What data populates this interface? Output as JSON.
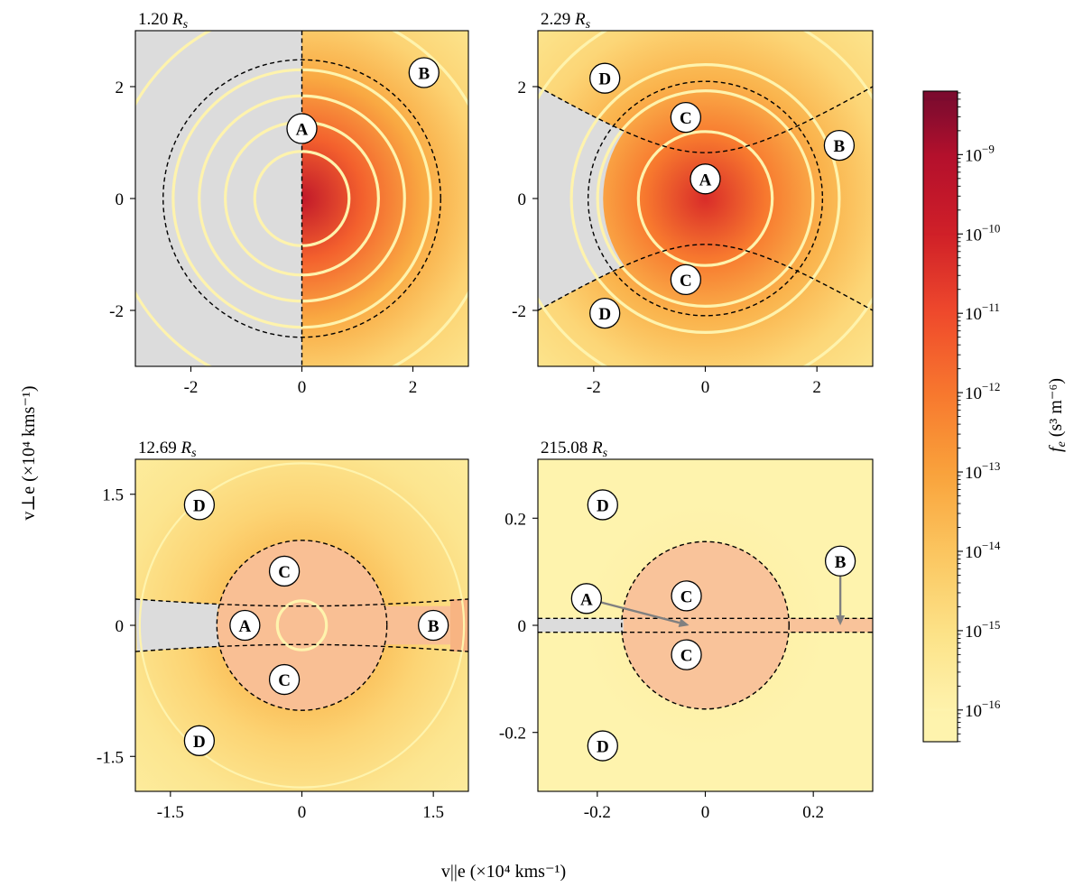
{
  "figure": {
    "shared_ylabel": "v⊥e (×10⁴ kms⁻¹)",
    "shared_xlabel": "v||e (×10⁴ kms⁻¹)"
  },
  "chart_data": [
    {
      "type": "heatmap",
      "title": "1.20 Rs",
      "title_value": "1.20",
      "title_unit": "R",
      "title_sub": "s",
      "xlim": [
        -3,
        3
      ],
      "ylim": [
        -3,
        3
      ],
      "xticks": [
        -2,
        0,
        2
      ],
      "yticks": [
        -2,
        0,
        2
      ],
      "xtick_labels": [
        "-2",
        "0",
        "2"
      ],
      "ytick_labels": [
        "-2",
        "0",
        "2"
      ],
      "core_log_fe": -9.5,
      "contours": [
        {
          "radius": 0.85,
          "level": "10⁻¹⁰"
        },
        {
          "radius": 1.38,
          "level": "10⁻¹¹"
        },
        {
          "radius": 1.85,
          "level": "10⁻¹²"
        },
        {
          "radius": 2.32,
          "level": "10⁻¹³"
        },
        {
          "radius": 3.45,
          "level": "10⁻¹⁴"
        }
      ],
      "boundaries": {
        "circle_radius": 2.5,
        "vertical_line": true,
        "gray_region": "left"
      },
      "labels": [
        {
          "text": "A",
          "v_par": 0.0,
          "v_perp": 1.25
        },
        {
          "text": "B",
          "v_par": 2.2,
          "v_perp": 2.25
        }
      ]
    },
    {
      "type": "heatmap",
      "title": "2.29 Rs",
      "title_value": "2.29",
      "title_unit": "R",
      "title_sub": "s",
      "xlim": [
        -3,
        3
      ],
      "ylim": [
        -3,
        3
      ],
      "xticks": [
        -2,
        0,
        2
      ],
      "yticks": [
        -2,
        0,
        2
      ],
      "xtick_labels": [
        "-2",
        "0",
        "2"
      ],
      "ytick_labels": [
        "-2",
        "0",
        "2"
      ],
      "core_log_fe": -10.3,
      "contours": [
        {
          "radius": 1.2,
          "level": "10⁻¹¹"
        },
        {
          "radius": 1.93,
          "level": "10⁻¹²"
        },
        {
          "radius": 2.4,
          "level": "10⁻¹³"
        },
        {
          "radius": 3.5,
          "level": "10⁻¹⁴"
        }
      ],
      "boundaries": {
        "circle_radius": 2.1,
        "hyperbola_vertex": 0.82,
        "hyperbola_edge": 2.0,
        "gray_region": "left"
      },
      "labels": [
        {
          "text": "A",
          "v_par": 0.0,
          "v_perp": 0.35
        },
        {
          "text": "B",
          "v_par": 2.4,
          "v_perp": 0.95
        },
        {
          "text": "C",
          "v_par": -0.35,
          "v_perp": 1.45
        },
        {
          "text": "C",
          "v_par": -0.35,
          "v_perp": -1.45
        },
        {
          "text": "D",
          "v_par": -1.8,
          "v_perp": 2.15
        },
        {
          "text": "D",
          "v_par": -1.8,
          "v_perp": -2.05
        }
      ]
    },
    {
      "type": "heatmap",
      "title": "12.69 Rs",
      "title_value": "12.69",
      "title_unit": "R",
      "title_sub": "s",
      "xlim": [
        -1.9,
        1.9
      ],
      "ylim": [
        -1.9,
        1.9
      ],
      "xticks": [
        -1.5,
        0,
        1.5
      ],
      "yticks": [
        -1.5,
        0,
        1.5
      ],
      "xtick_labels": [
        "-1.5",
        "0",
        "1.5"
      ],
      "ytick_labels": [
        "-1.5",
        "0",
        "1.5"
      ],
      "core_log_fe": -12.6,
      "contours": [
        {
          "radius": 0.28,
          "level": "10⁻¹²"
        },
        {
          "radius": 1.85,
          "level": "10⁻¹⁵"
        }
      ],
      "boundaries": {
        "circle_radius": 0.97,
        "hyperbola_vertex": 0.22,
        "hyperbola_edge": 0.3,
        "gray_region": "left"
      },
      "labels": [
        {
          "text": "A",
          "v_par": -0.65,
          "v_perp": 0.0
        },
        {
          "text": "B",
          "v_par": 1.5,
          "v_perp": 0.0
        },
        {
          "text": "C",
          "v_par": -0.2,
          "v_perp": 0.62
        },
        {
          "text": "C",
          "v_par": -0.2,
          "v_perp": -0.62
        },
        {
          "text": "D",
          "v_par": -1.17,
          "v_perp": 1.38
        },
        {
          "text": "D",
          "v_par": -1.17,
          "v_perp": -1.32
        }
      ]
    },
    {
      "type": "heatmap",
      "title": "215.08 Rs",
      "title_value": "215.08",
      "title_unit": "R",
      "title_sub": "s",
      "xlim": [
        -0.31,
        0.31
      ],
      "ylim": [
        -0.31,
        0.31
      ],
      "xticks": [
        -0.2,
        0,
        0.2
      ],
      "yticks": [
        -0.2,
        0,
        0.2
      ],
      "xtick_labels": [
        "-0.2",
        "0",
        "0.2"
      ],
      "ytick_labels": [
        "-0.2",
        "0",
        "0.2"
      ],
      "core_log_fe": -15.6,
      "contours": [],
      "boundaries": {
        "circle_radius": 0.155,
        "strip_half_width": 0.013,
        "gray_region": "left"
      },
      "labels": [
        {
          "text": "A",
          "v_par": -0.22,
          "v_perp": 0.05,
          "arrow_to": [
            -0.03,
            0.0
          ]
        },
        {
          "text": "B",
          "v_par": 0.25,
          "v_perp": 0.12,
          "arrow_to": [
            0.25,
            0.0
          ]
        },
        {
          "text": "C",
          "v_par": -0.035,
          "v_perp": 0.055
        },
        {
          "text": "C",
          "v_par": -0.035,
          "v_perp": -0.055
        },
        {
          "text": "D",
          "v_par": -0.19,
          "v_perp": 0.225
        },
        {
          "text": "D",
          "v_par": -0.19,
          "v_perp": -0.225
        }
      ]
    }
  ],
  "colorbar": {
    "label_main": "f",
    "label_sub": "e",
    "label_unit": " (s³ m⁻⁶)",
    "range_log": [
      -16.4,
      -8.2
    ],
    "ticks": [
      {
        "value": -9,
        "base": "10",
        "exp": "−9"
      },
      {
        "value": -10,
        "base": "10",
        "exp": "−10"
      },
      {
        "value": -11,
        "base": "10",
        "exp": "−11"
      },
      {
        "value": -12,
        "base": "10",
        "exp": "−12"
      },
      {
        "value": -13,
        "base": "10",
        "exp": "−13"
      },
      {
        "value": -14,
        "base": "10",
        "exp": "−14"
      },
      {
        "value": -15,
        "base": "10",
        "exp": "−15"
      },
      {
        "value": -16,
        "base": "10",
        "exp": "−16"
      }
    ],
    "level_colors": [
      {
        "value": -8.3,
        "color": "#7a0b2e"
      },
      {
        "value": -9.0,
        "color": "#b3102c"
      },
      {
        "value": -10.0,
        "color": "#cf1f28"
      },
      {
        "value": -11.0,
        "color": "#ef4a2c"
      },
      {
        "value": -12.0,
        "color": "#f7772e"
      },
      {
        "value": -13.0,
        "color": "#f9a23b"
      },
      {
        "value": -14.0,
        "color": "#fbc55f"
      },
      {
        "value": -15.0,
        "color": "#fce186"
      },
      {
        "value": -16.0,
        "color": "#fef3ad"
      }
    ]
  },
  "colors": {
    "gray_region": "#dcdcdc",
    "arrow": "#808080"
  }
}
